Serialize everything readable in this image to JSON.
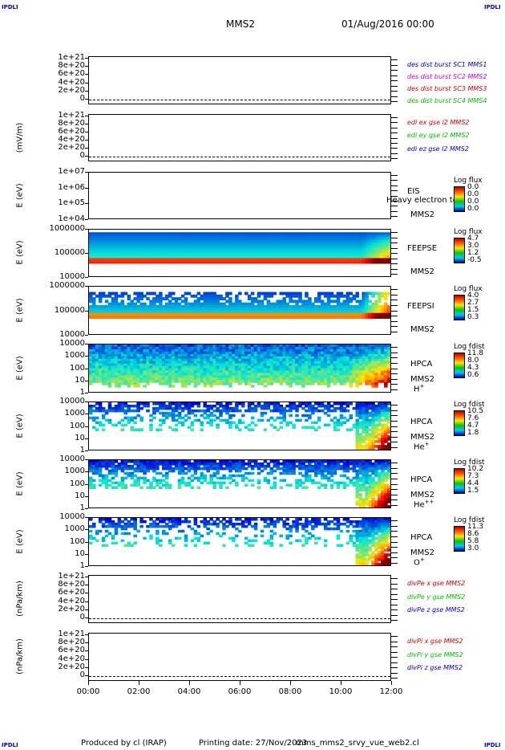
{
  "corners": {
    "tl": "IPDLI",
    "tr": "IPDLI",
    "bl": "IPDLI",
    "br": "IPDLI"
  },
  "header": {
    "spacecraft": "MMS2",
    "datetime": "01/Aug/2016 00:00"
  },
  "footer": {
    "produced": "Produced by cl (IRAP)",
    "printing": "Printing date: 27/Nov/2023",
    "script": "mms_mms2_srvy_vue_web2.cl"
  },
  "colors": {
    "blue": "#0000cc",
    "magenta": "#cc00cc",
    "red": "#cc0000",
    "green": "#00bb00"
  },
  "chart_data": [
    {
      "type": "line",
      "ylabel": "",
      "yticks": [
        "1e+21",
        "8e+20",
        "6e+20",
        "4e+20",
        "2e+20",
        "0"
      ],
      "series": [
        {
          "name": "des dist burst SC1 MMS1",
          "color": "#0000cc"
        },
        {
          "name": "des dist burst SC2 MMS2",
          "color": "#cc00cc"
        },
        {
          "name": "des dist burst SC3 MMS3",
          "color": "#cc0000"
        },
        {
          "name": "des dist burst SC4 MMS4",
          "color": "#00bb00"
        }
      ]
    },
    {
      "type": "line",
      "ylabel": "(mV/m)",
      "yticks": [
        "1e+21",
        "8e+20",
        "6e+20",
        "4e+20",
        "2e+20",
        "0"
      ],
      "series": [
        {
          "name": "edi ex gse l2 MMS2",
          "color": "#cc0000"
        },
        {
          "name": "edi ey gse l2 MMS2",
          "color": "#00bb00"
        },
        {
          "name": "edi ez gse l2 MMS2",
          "color": "#0000cc"
        }
      ]
    },
    {
      "type": "heatmap",
      "ylabel": "E (eV)",
      "yticks": [
        "1e+07",
        "1e+06",
        "1e+05",
        "1e+04"
      ],
      "instrument": "EIS",
      "sc": "MMS2",
      "overlay": "Heavy electron to",
      "cb_label": "Log flux",
      "cb_ticks": [
        "0.0",
        "0.0",
        "0.0",
        "0.0"
      ]
    },
    {
      "type": "heatmap",
      "ylabel": "E (eV)",
      "yticks": [
        "1000000",
        "100000",
        "10000"
      ],
      "instrument": "FEEPSE",
      "sc": "MMS2",
      "cb_label": "Log flux",
      "cb_ticks": [
        "4.7",
        "3.0",
        "1.2",
        "-0.5"
      ]
    },
    {
      "type": "heatmap",
      "ylabel": "E (eV)",
      "yticks": [
        "1000000",
        "100000",
        "10000"
      ],
      "instrument": "FEEPSI",
      "sc": "MMS2",
      "cb_label": "Log flux",
      "cb_ticks": [
        "4.0",
        "2.7",
        "1.5",
        "0.3"
      ]
    },
    {
      "type": "heatmap",
      "ylabel": "E (eV)",
      "yticks": [
        "10000",
        "1000",
        "100",
        "10",
        "1"
      ],
      "instrument": "HPCA",
      "sc": "MMS2",
      "species": "H",
      "sup": "+",
      "cb_label": "Log fdist",
      "cb_ticks": [
        "11.8",
        "8.0",
        "4.3",
        "0.6"
      ]
    },
    {
      "type": "heatmap",
      "ylabel": "E (eV)",
      "yticks": [
        "10000",
        "1000",
        "100",
        "10",
        "1"
      ],
      "instrument": "HPCA",
      "sc": "MMS2",
      "species": "He",
      "sup": "+",
      "cb_label": "Log fdist",
      "cb_ticks": [
        "10.5",
        "7.6",
        "4.7",
        "1.8"
      ]
    },
    {
      "type": "heatmap",
      "ylabel": "E (eV)",
      "yticks": [
        "10000",
        "1000",
        "100",
        "10",
        "1"
      ],
      "instrument": "HPCA",
      "sc": "MMS2",
      "species": "He",
      "sup": "++",
      "cb_label": "Log fdist",
      "cb_ticks": [
        "10.2",
        "7.3",
        "4.4",
        "1.5"
      ]
    },
    {
      "type": "heatmap",
      "ylabel": "E (eV)",
      "yticks": [
        "10000",
        "1000",
        "100",
        "10",
        "1"
      ],
      "instrument": "HPCA",
      "sc": "MMS2",
      "species": "O",
      "sup": "+",
      "cb_label": "Log fdist",
      "cb_ticks": [
        "11.3",
        "8.6",
        "5.8",
        "3.0"
      ]
    },
    {
      "type": "line",
      "ylabel": "(nPa/km)",
      "yticks": [
        "1e+21",
        "8e+20",
        "6e+20",
        "4e+20",
        "2e+20",
        "0"
      ],
      "series": [
        {
          "name": "divPe x gse MMS2",
          "color": "#cc0000"
        },
        {
          "name": "divPe y gse MMS2",
          "color": "#00bb00"
        },
        {
          "name": "divPe z gse MMS2",
          "color": "#0000cc"
        }
      ]
    },
    {
      "type": "line",
      "ylabel": "(nPa/km)",
      "yticks": [
        "1e+21",
        "8e+20",
        "6e+20",
        "4e+20",
        "2e+20",
        "0"
      ],
      "series": [
        {
          "name": "divPi x gse MMS2",
          "color": "#cc0000"
        },
        {
          "name": "divPi y gse MMS2",
          "color": "#00bb00"
        },
        {
          "name": "divPi z gse MMS2",
          "color": "#0000cc"
        }
      ]
    }
  ],
  "xaxis": {
    "ticks": [
      "00:00",
      "02:00",
      "04:00",
      "06:00",
      "08:00",
      "10:00",
      "12:00"
    ]
  }
}
